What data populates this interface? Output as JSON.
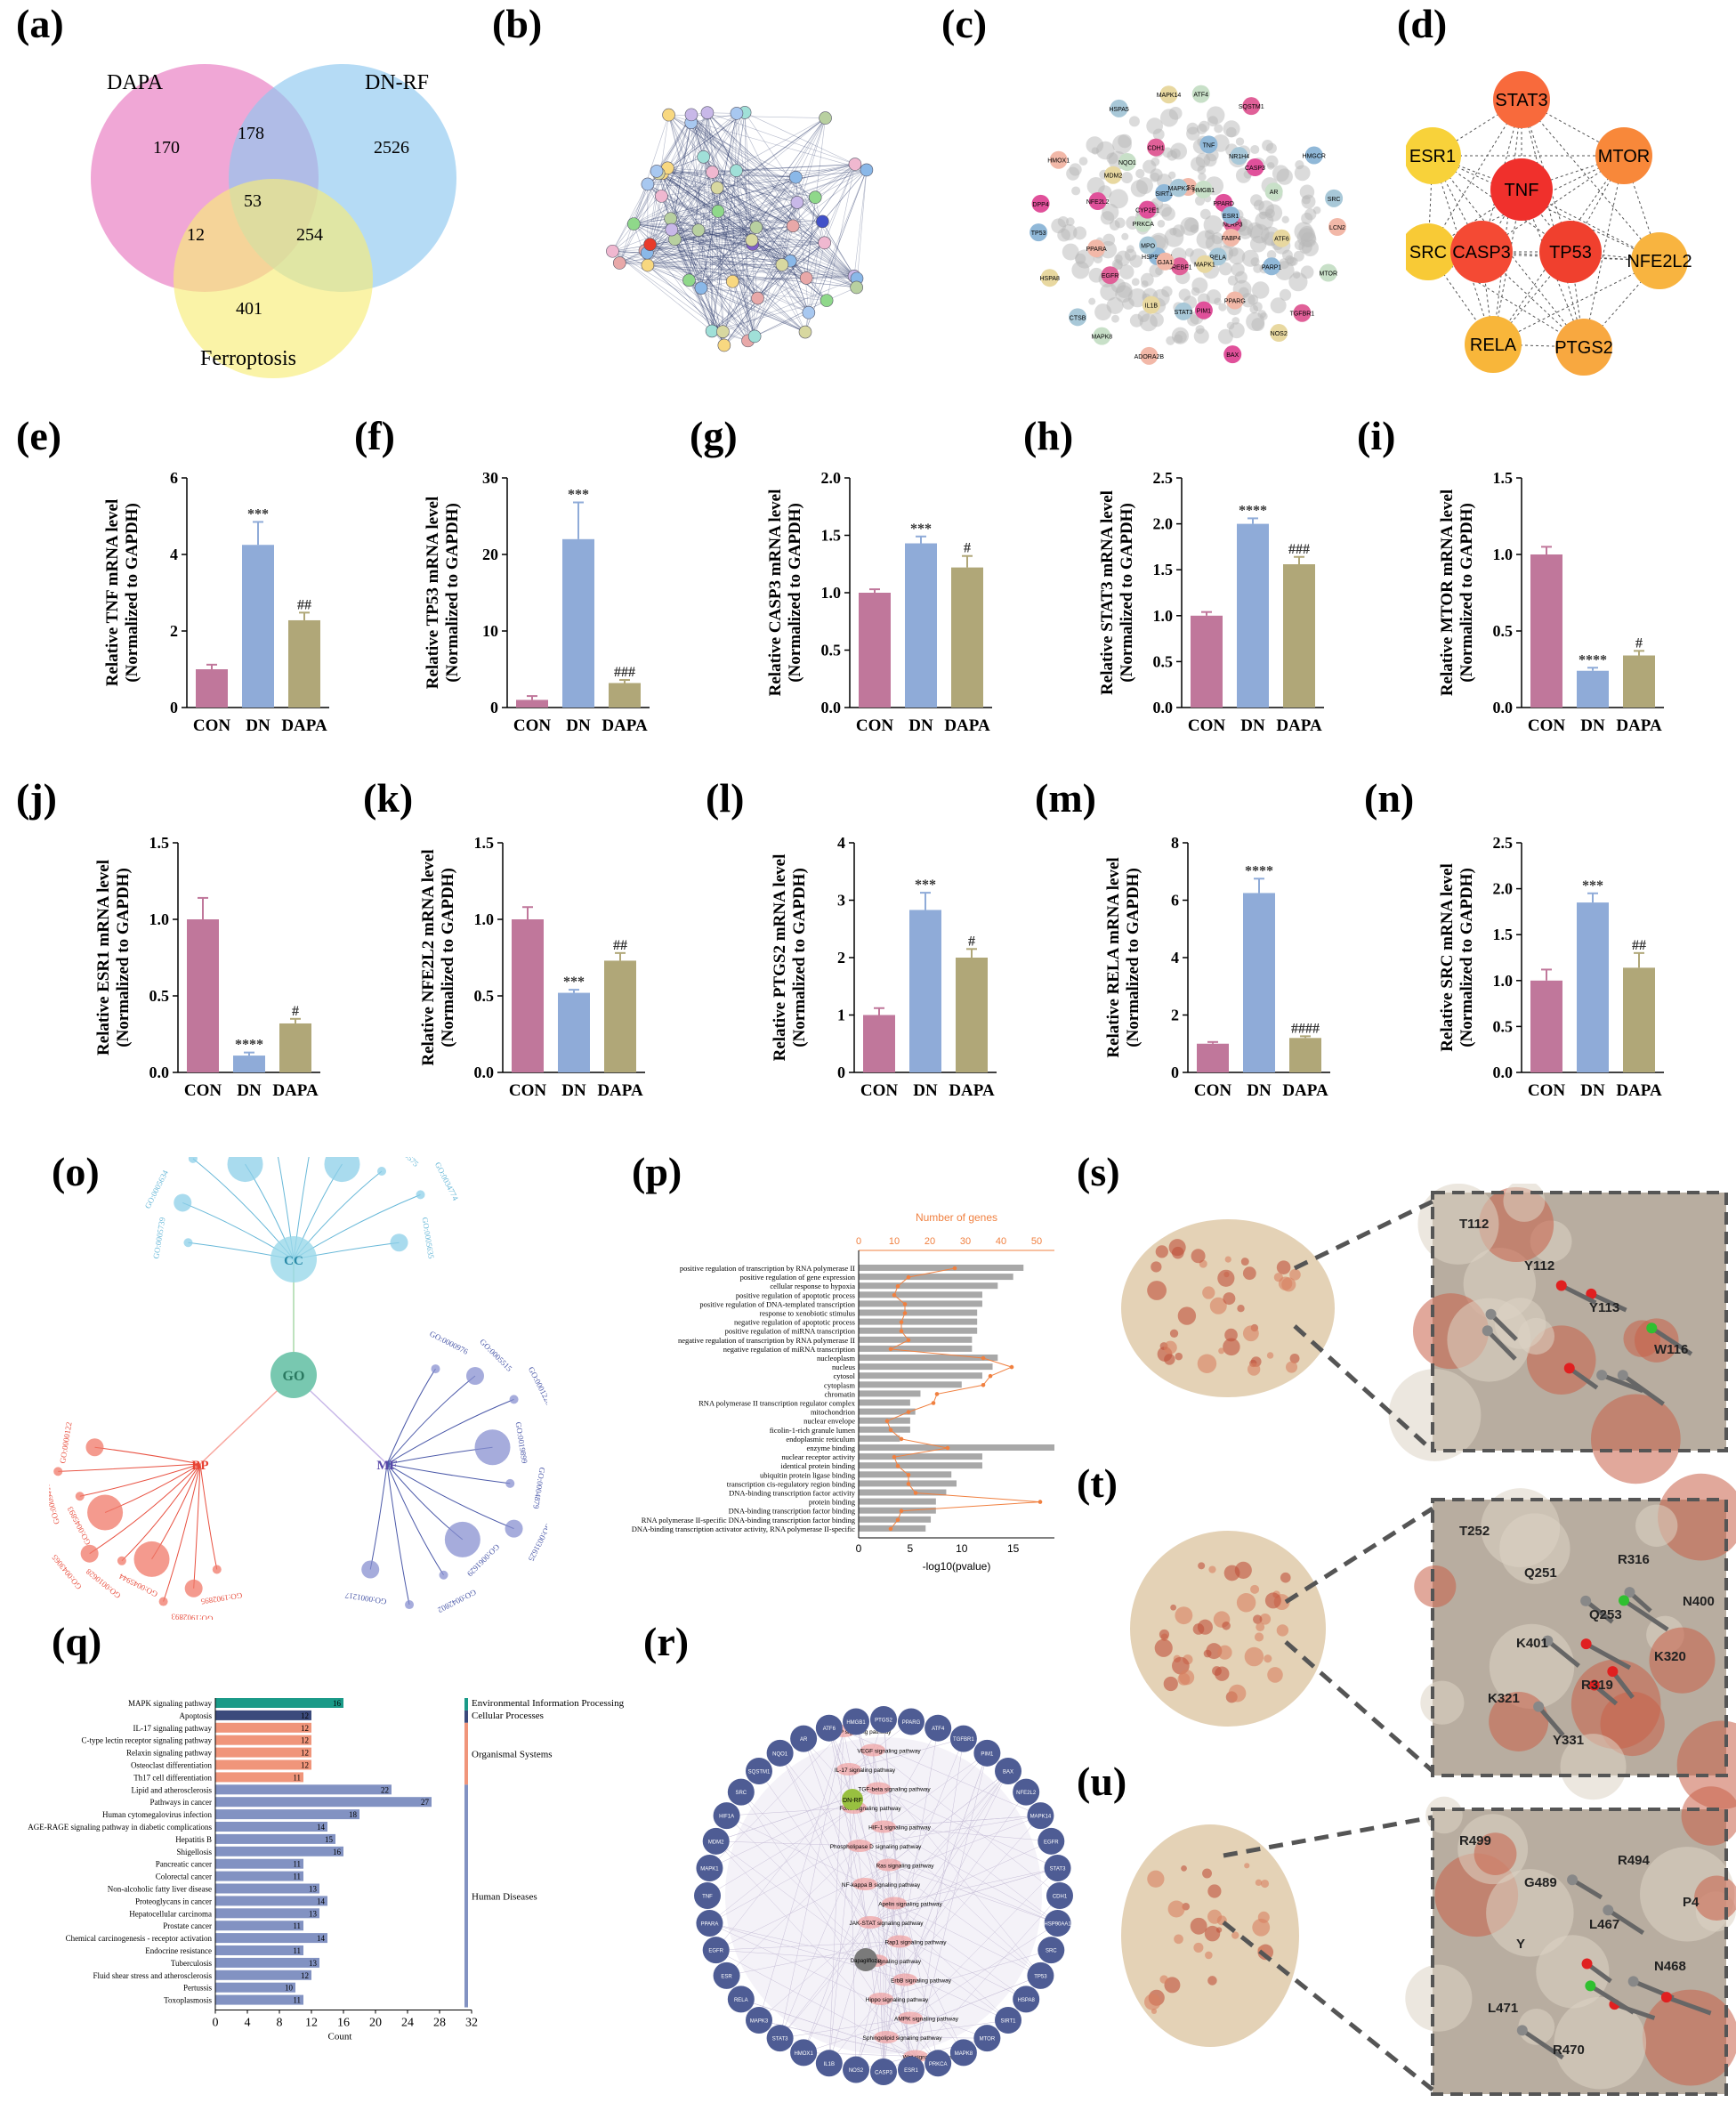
{
  "labels": {
    "a": "(a)",
    "b": "(b)",
    "c": "(c)",
    "d": "(d)",
    "e": "(e)",
    "f": "(f)",
    "g": "(g)",
    "h": "(h)",
    "i": "(i)",
    "j": "(j)",
    "k": "(k)",
    "l": "(l)",
    "m": "(m)",
    "n": "(n)",
    "o": "(o)",
    "p": "(p)",
    "q": "(q)",
    "r": "(r)",
    "s": "(s)",
    "t": "(t)",
    "u": "(u)"
  },
  "venn": {
    "sets": [
      "DAPA",
      "DN-RF",
      "Ferroptosis"
    ],
    "colors": [
      "#e878c0",
      "#8ec8ef",
      "#f8ec78"
    ],
    "counts": {
      "dapa_only": "170",
      "dnrf_only": "2526",
      "ferr_only": "401",
      "dapa_dnrf": "178",
      "dapa_ferr": "12",
      "dnrf_ferr": "254",
      "all": "53"
    }
  },
  "hub_network": {
    "nodes": [
      {
        "name": "STAT3",
        "color": "#f86a3c"
      },
      {
        "name": "ESR1",
        "color": "#f8d23a"
      },
      {
        "name": "MTOR",
        "color": "#f8883a"
      },
      {
        "name": "TNF",
        "color": "#f0302c"
      },
      {
        "name": "SRC",
        "color": "#f8ca36"
      },
      {
        "name": "CASP3",
        "color": "#f44a34"
      },
      {
        "name": "TP53",
        "color": "#f0402e"
      },
      {
        "name": "NFE2L2",
        "color": "#f8b440"
      },
      {
        "name": "RELA",
        "color": "#f8b63a"
      },
      {
        "name": "PTGS2",
        "color": "#f8a840"
      }
    ]
  },
  "ppi_labels": [
    "LCN2",
    "CTSB",
    "ATF4",
    "NOS2",
    "DPP4",
    "HMGCR",
    "ADORA2B",
    "HSPA5",
    "MTOR",
    "HSPA8",
    "SQSTM1",
    "BAX",
    "HMOX1",
    "SRC",
    "MAPK8",
    "MAPK14",
    "TGFBR1",
    "TP53",
    "CASP3",
    "STAT3",
    "NQO1",
    "ATF6",
    "EGFR",
    "TNF",
    "PPARG",
    "NFE2L2",
    "AR",
    "IL1B",
    "CDH1",
    "PARP1",
    "PPARA",
    "NR1H4",
    "PIM1",
    "MDM2",
    "NLRP3",
    "HSP90AA1",
    "PTGS2",
    "RELA",
    "PRKCA",
    "PPARD",
    "SREBF1",
    "SIRT1",
    "FABP4",
    "MPO",
    "HMGB1",
    "MAPK1",
    "CYP2E1",
    "ESR1",
    "GJA1",
    "MAPK3"
  ],
  "bar_common": {
    "groups": [
      "CON",
      "DN",
      "DAPA"
    ],
    "colors": [
      "#c0779b",
      "#8fabd8",
      "#b0a778"
    ],
    "ylabel_2": "(Normalized to GAPDH)"
  },
  "chart_data": [
    {
      "panel": "e",
      "type": "bar",
      "gene": "TNF",
      "ylabel": "Relative TNF mRNA level",
      "ylim": [
        0,
        6
      ],
      "ticks": [
        "0",
        "2",
        "4",
        "6"
      ],
      "categories": [
        "CON",
        "DN",
        "DAPA"
      ],
      "values": [
        1.0,
        4.25,
        2.28
      ],
      "errors": [
        0.12,
        0.6,
        0.2
      ],
      "marks": [
        "",
        "***",
        "##"
      ]
    },
    {
      "panel": "f",
      "type": "bar",
      "gene": "TP53",
      "ylabel": "Relative TP53 mRNA level",
      "ylim": [
        0,
        30
      ],
      "ticks": [
        "0",
        "10",
        "20",
        "30"
      ],
      "categories": [
        "CON",
        "DN",
        "DAPA"
      ],
      "values": [
        1.0,
        22.0,
        3.2
      ],
      "errors": [
        0.5,
        4.8,
        0.4
      ],
      "marks": [
        "",
        "***",
        "###"
      ]
    },
    {
      "panel": "g",
      "type": "bar",
      "gene": "CASP3",
      "ylabel": "Relative CASP3 mRNA level",
      "ylim": [
        0,
        2.0
      ],
      "ticks": [
        "0.0",
        "0.5",
        "1.0",
        "1.5",
        "2.0"
      ],
      "categories": [
        "CON",
        "DN",
        "DAPA"
      ],
      "values": [
        1.0,
        1.43,
        1.22
      ],
      "errors": [
        0.03,
        0.06,
        0.1
      ],
      "marks": [
        "",
        "***",
        "#"
      ]
    },
    {
      "panel": "h",
      "type": "bar",
      "gene": "STAT3",
      "ylabel": "Relative STAT3 mRNA level",
      "ylim": [
        0,
        2.5
      ],
      "ticks": [
        "0.0",
        "0.5",
        "1.0",
        "1.5",
        "2.0",
        "2.5"
      ],
      "categories": [
        "CON",
        "DN",
        "DAPA"
      ],
      "values": [
        1.0,
        2.0,
        1.56
      ],
      "errors": [
        0.04,
        0.06,
        0.08
      ],
      "marks": [
        "",
        "****",
        "###"
      ]
    },
    {
      "panel": "i",
      "type": "bar",
      "gene": "MTOR",
      "ylabel": "Relative  MTOR mRNA level",
      "ylim": [
        0,
        1.5
      ],
      "ticks": [
        "0.0",
        "0.5",
        "1.0",
        "1.5"
      ],
      "categories": [
        "CON",
        "DN",
        "DAPA"
      ],
      "values": [
        1.0,
        0.24,
        0.34
      ],
      "errors": [
        0.05,
        0.02,
        0.03
      ],
      "marks": [
        "",
        "****",
        "#"
      ]
    },
    {
      "panel": "j",
      "type": "bar",
      "gene": "ESR1",
      "ylabel": "Relative ESR1 mRNA level",
      "ylim": [
        0,
        1.5
      ],
      "ticks": [
        "0.0",
        "0.5",
        "1.0",
        "1.5"
      ],
      "categories": [
        "CON",
        "DN",
        "DAPA"
      ],
      "values": [
        1.0,
        0.11,
        0.32
      ],
      "errors": [
        0.14,
        0.02,
        0.03
      ],
      "marks": [
        "",
        "****",
        "#"
      ]
    },
    {
      "panel": "k",
      "type": "bar",
      "gene": "NFE2L2",
      "ylabel": "Relative NFE2L2 mRNA level",
      "ylim": [
        0,
        1.5
      ],
      "ticks": [
        "0.0",
        "0.5",
        "1.0",
        "1.5"
      ],
      "categories": [
        "CON",
        "DN",
        "DAPA"
      ],
      "values": [
        1.0,
        0.52,
        0.73
      ],
      "errors": [
        0.08,
        0.02,
        0.05
      ],
      "marks": [
        "",
        "***",
        "##"
      ]
    },
    {
      "panel": "l",
      "type": "bar",
      "gene": "PTGS2",
      "ylabel": "Relative PTGS2 mRNA level",
      "ylim": [
        0,
        4
      ],
      "ticks": [
        "0",
        "1",
        "2",
        "3",
        "4"
      ],
      "categories": [
        "CON",
        "DN",
        "DAPA"
      ],
      "values": [
        1.0,
        2.83,
        2.0
      ],
      "errors": [
        0.12,
        0.3,
        0.15
      ],
      "marks": [
        "",
        "***",
        "#"
      ]
    },
    {
      "panel": "m",
      "type": "bar",
      "gene": "RELA",
      "ylabel": "Relative RELA mRNA level",
      "ylim": [
        0,
        8
      ],
      "ticks": [
        "0",
        "2",
        "4",
        "6",
        "8"
      ],
      "categories": [
        "CON",
        "DN",
        "DAPA"
      ],
      "values": [
        1.0,
        6.25,
        1.2
      ],
      "errors": [
        0.06,
        0.5,
        0.06
      ],
      "marks": [
        "",
        "****",
        "####"
      ]
    },
    {
      "panel": "n",
      "type": "bar",
      "gene": "SRC",
      "ylabel": "Relative SRC mRNA level",
      "ylim": [
        0,
        2.5
      ],
      "ticks": [
        "0.0",
        "0.5",
        "1.0",
        "1.5",
        "2.0",
        "2.5"
      ],
      "categories": [
        "CON",
        "DN",
        "DAPA"
      ],
      "values": [
        1.0,
        1.85,
        1.14
      ],
      "errors": [
        0.12,
        0.1,
        0.16
      ],
      "marks": [
        "",
        "***",
        "##"
      ]
    },
    {
      "panel": "p",
      "type": "bar",
      "orientation": "horizontal",
      "title": "Number of genes",
      "xlabel": "-log10(pvalue)",
      "xticks": [
        "0",
        "5",
        "10",
        "15"
      ],
      "top_ticks": [
        "0",
        "10",
        "20",
        "30",
        "40",
        "50"
      ],
      "categories": [
        "positive regulation of transcription by RNA polymerase II",
        "positive regulation of gene expression",
        "cellular response to hypoxia",
        "positive regulation of apoptotic process",
        "positive regulation of DNA-templated transcription",
        "response to xenobiotic stimulus",
        "negative regulation of apoptotic process",
        "positive regulation of miRNA transcription",
        "negative regulation of transcription by RNA polymerase II",
        "negative regulation of miRNA transcription",
        "nucleoplasm",
        "nucleus",
        "cytosol",
        "cytoplasm",
        "chromatin",
        "RNA polymerase II transcription regulator complex",
        "mitochondrion",
        "nuclear envelope",
        "ficolin-1-rich granule lumen",
        "endoplasmic reticulum",
        "enzyme binding",
        "nuclear receptor activity",
        "identical protein binding",
        "ubiquitin protein ligase binding",
        "transcription cis-regulatory region binding",
        "DNA-binding transcription factor activity",
        "protein binding",
        "DNA-binding transcription factor binding",
        "RNA polymerase II-specific DNA-binding transcription factor binding",
        "DNA-binding transcription activator activity, RNA polymerase II-specific"
      ],
      "values": [
        16,
        15,
        13.5,
        12,
        12,
        11.5,
        11.5,
        11.5,
        11,
        11,
        13.5,
        13,
        12,
        10,
        6,
        5,
        5.5,
        5,
        5,
        4,
        19,
        12,
        12,
        9,
        9.5,
        8.5,
        7.5,
        7.5,
        7,
        6.5
      ],
      "genes": [
        27,
        14,
        11,
        10,
        13,
        13,
        12,
        12,
        14,
        9,
        35,
        43,
        37,
        35,
        22,
        21,
        14,
        8,
        9,
        12,
        25,
        10,
        11,
        14,
        14,
        16,
        51,
        12,
        11,
        9
      ]
    },
    {
      "panel": "q",
      "type": "bar",
      "orientation": "horizontal",
      "xlabel": "Count",
      "xticks": [
        "0",
        "4",
        "8",
        "12",
        "16",
        "20",
        "24",
        "28",
        "32"
      ],
      "categories": [
        "MAPK signaling pathway",
        "Apoptosis",
        "IL-17 signaling pathway",
        "C-type lectin receptor signaling pathway",
        "Relaxin signaling pathway",
        "Osteoclast differentiation",
        "Th17 cell differentiation",
        "Lipid and atherosclerosis",
        "Pathways in cancer",
        "Human cytomegalovirus infection",
        "AGE-RAGE signaling pathway in diabetic complications",
        "Hepatitis B",
        "Shigellosis",
        "Pancreatic cancer",
        "Colorectal cancer",
        "Non-alcoholic fatty liver disease",
        "Proteoglycans in cancer",
        "Hepatocellular carcinoma",
        "Prostate cancer",
        "Chemical carcinogenesis - receptor activation",
        "Endocrine resistance",
        "Tuberculosis",
        "Fluid shear stress and atherosclerosis",
        "Pertussis",
        "Toxoplasmosis"
      ],
      "values": [
        16,
        12,
        12,
        12,
        12,
        12,
        11,
        22,
        27,
        18,
        14,
        15,
        16,
        11,
        11,
        13,
        14,
        13,
        11,
        14,
        11,
        13,
        12,
        10,
        11
      ],
      "value_labels": [
        "16",
        "12",
        "12",
        "12",
        "12",
        "12",
        "11",
        "22",
        "27",
        "18",
        "14",
        "15",
        "16",
        "11",
        "11",
        "13",
        "14",
        "13",
        "11",
        "14",
        "11",
        "13",
        "12",
        "10",
        "11"
      ],
      "category_groups": [
        {
          "name": "Environmental Information Processing",
          "color": "#1a9a88"
        },
        {
          "name": "Cellular Processes",
          "color": "#3b4a7c"
        },
        {
          "name": "Organismal Systems",
          "color": "#f0957a"
        },
        {
          "name": "Human Diseases",
          "color": "#8292c2"
        }
      ]
    }
  ],
  "go_tree": {
    "root": "GO",
    "cc": "CC",
    "bp": "BP",
    "mf": "MF",
    "cc_terms": [
      "GO:0005739",
      "GO:0005634",
      "GO:0032991",
      "GO:0000785",
      "GO:0005829",
      "GO:0005737",
      "GO:0005783",
      "GO:0090575",
      "GO:0034774",
      "GO:0005635"
    ],
    "mf_terms": [
      "GO:0000976",
      "GO:0005515",
      "GO:0001228",
      "GO:0019899",
      "GO:0004879",
      "GO:0031625",
      "GO:0061629",
      "GO:0042802",
      "GO:0003700",
      "GO:0001217"
    ],
    "bp_terms": [
      "GO:1902895",
      "GO:1902893",
      "GO:0071456",
      "GO:0045944",
      "GO:0010628",
      "GO:0043065",
      "GO:0045893",
      "GO:0009410",
      "GO:0043066",
      "GO:0000122"
    ]
  },
  "kegg_circle": {
    "hub_top": "DN-RF",
    "hub_bottom": "Dapagliflozin",
    "pathways": [
      "cAMP signaling pathway",
      "VEGF signaling pathway",
      "IL-17 signaling pathway",
      "TGF-beta signaling pathway",
      "FoxO signaling pathway",
      "HIF-1 signaling pathway",
      "Phospholipase D signaling pathway",
      "Ras signaling pathway",
      "NF-kappa B signaling pathway",
      "Apelin signaling pathway",
      "JAK-STAT signaling pathway",
      "Rap1 signaling pathway",
      "TNF signaling pathway",
      "ErbB signaling pathway",
      "Hippo signaling pathway",
      "AMPK signaling pathway",
      "Sphingolipid signaling pathway",
      "Wnt signaling pathway"
    ],
    "genes": [
      "PTGS2",
      "PPARG",
      "ATF4",
      "TGFBR1",
      "PIM1",
      "BAX",
      "NFE2L2",
      "MAPK14",
      "EGFR",
      "STAT3",
      "CDH1",
      "HSP90AA1",
      "SRC",
      "TP53",
      "HSPA8",
      "SIRT1",
      "MTOR",
      "MAPK8",
      "PRKCA",
      "ESR1",
      "CASP3",
      "NOS2",
      "IL1B",
      "HMOX1",
      "STAT3",
      "MAPK3",
      "RELA",
      "ESR",
      "EGFR",
      "PPARA",
      "TNF",
      "MAPK1",
      "MDM2",
      "HIF1A",
      "SRC",
      "SQSTM1",
      "NQO1",
      "AR",
      "ATF6",
      "HMGB1"
    ]
  },
  "docking": {
    "s": [
      "T112",
      "Y112",
      "Y113",
      "W116"
    ],
    "t": [
      "T252",
      "Q251",
      "Q253",
      "K320",
      "K321",
      "Y331",
      "R316",
      "N400",
      "K401",
      "R319"
    ],
    "u": [
      "R499",
      "G489",
      "L467",
      "N468",
      "L471",
      "R470",
      "R494",
      "P4",
      "Y"
    ]
  }
}
